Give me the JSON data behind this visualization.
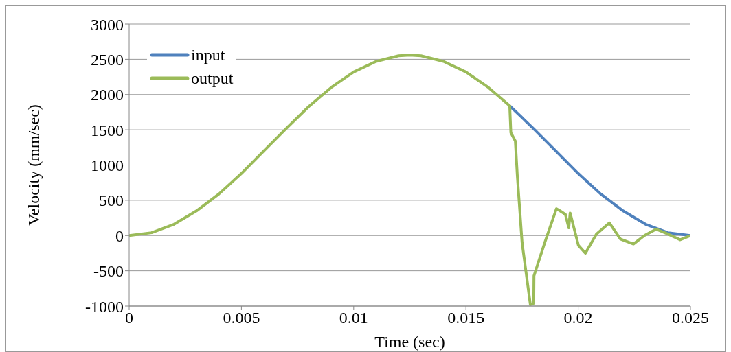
{
  "chart_data": {
    "type": "line",
    "xlabel": "Time (sec)",
    "ylabel": "Velocity (mm/sec)",
    "xlim": [
      0,
      0.025
    ],
    "xticks": [
      0,
      0.005,
      0.01,
      0.015,
      0.02,
      0.025
    ],
    "ylim": [
      -1000,
      3000
    ],
    "yticks": [
      -1000,
      -500,
      0,
      500,
      1000,
      1500,
      2000,
      2500,
      3000
    ],
    "grid": "y",
    "legend": "top left",
    "marker": "none",
    "line_style": "solid",
    "series": [
      {
        "name": "input",
        "color": "#4f81bd",
        "x": [
          0.01695,
          0.018,
          0.019,
          0.02,
          0.021,
          0.022,
          0.023,
          0.024,
          0.025
        ],
        "values": [
          1840,
          1520,
          1200,
          880,
          590,
          350,
          160,
          40,
          0
        ]
      },
      {
        "name": "output",
        "color": "#9bbb59",
        "x": [
          0,
          0.001,
          0.002,
          0.003,
          0.004,
          0.005,
          0.006,
          0.007,
          0.008,
          0.009,
          0.01,
          0.011,
          0.012,
          0.0125,
          0.013,
          0.014,
          0.015,
          0.016,
          0.01695,
          0.017,
          0.0172,
          0.01729,
          0.0175,
          0.01787,
          0.01802,
          0.01803,
          0.01851,
          0.01903,
          0.01919,
          0.01943,
          0.01958,
          0.01964,
          0.02001,
          0.02032,
          0.02081,
          0.02139,
          0.02188,
          0.02246,
          0.02295,
          0.02347,
          0.024,
          0.02454,
          0.025
        ],
        "values": [
          0,
          40,
          160,
          350,
          590,
          880,
          1200,
          1520,
          1830,
          2100,
          2320,
          2470,
          2550,
          2560,
          2550,
          2470,
          2320,
          2100,
          1840,
          1460,
          1340,
          840,
          -100,
          -980,
          -960,
          -570,
          -100,
          380,
          350,
          300,
          110,
          320,
          -140,
          -250,
          20,
          180,
          -50,
          -120,
          0,
          90,
          20,
          -60,
          0
        ]
      }
    ]
  }
}
